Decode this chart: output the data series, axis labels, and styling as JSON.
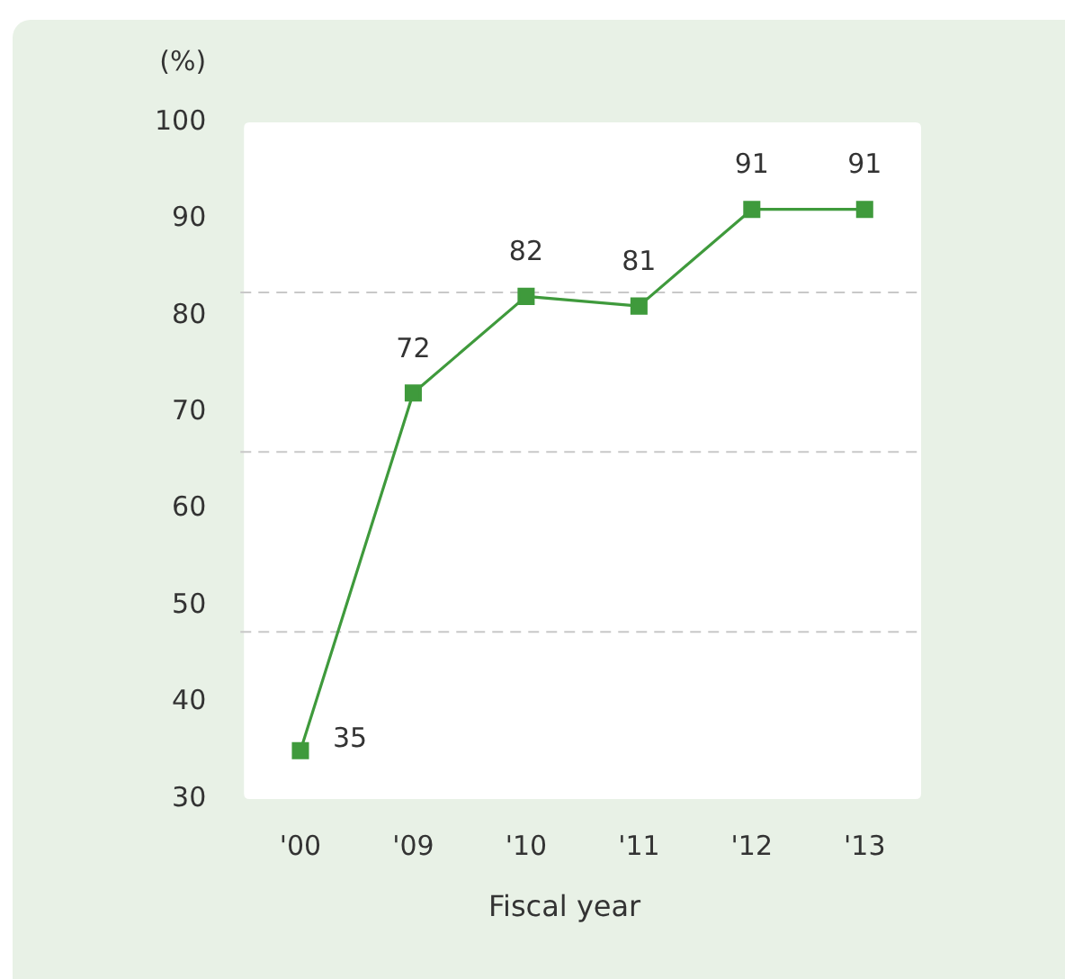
{
  "chart_data": {
    "type": "line",
    "ylabel": "(%)",
    "xlabel": "Fiscal year",
    "categories": [
      "'00",
      "'09",
      "'10",
      "'11",
      "'12",
      "'13"
    ],
    "series": [
      {
        "values": [
          35,
          72,
          82,
          81,
          91,
          91
        ],
        "color": "#3f9a3c"
      }
    ],
    "ylim": [
      30,
      100
    ],
    "yticks": [
      30,
      40,
      50,
      60,
      70,
      80,
      90,
      100
    ],
    "marker": "square",
    "line_style": "solid",
    "data_labels": true,
    "ref_lines": [
      {
        "axis": "y",
        "value": 82.4,
        "color": "#c8c8c8",
        "line_style": "dashed"
      },
      {
        "axis": "y",
        "value": 65.9,
        "color": "#c8c8c8",
        "line_style": "dashed"
      },
      {
        "axis": "y",
        "value": 47.3,
        "color": "#c8c8c8",
        "line_style": "dashed"
      }
    ]
  }
}
